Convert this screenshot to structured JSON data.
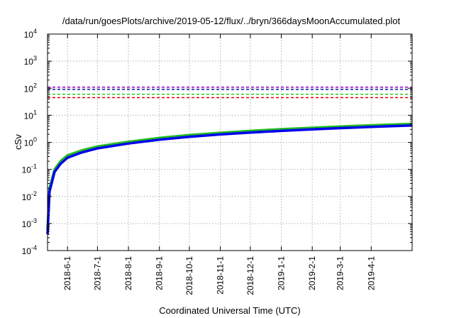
{
  "chart_data": {
    "type": "line",
    "title": "/data/run/goesPlots/archive/2019-05-12/flux/../bryn/366daysMoonAccumulated.plot",
    "xlabel": "Coordinated Universal Time (UTC)",
    "ylabel": "cSv",
    "yscale": "log",
    "ylim": [
      0.0001,
      10000
    ],
    "xlim": [
      "2018-05-12",
      "2019-05-12"
    ],
    "grid": true,
    "y_ticks": [
      {
        "base": "10",
        "exp": "-4",
        "value": 0.0001
      },
      {
        "base": "10",
        "exp": "-3",
        "value": 0.001
      },
      {
        "base": "10",
        "exp": "-2",
        "value": 0.01
      },
      {
        "base": "10",
        "exp": "-1",
        "value": 0.1
      },
      {
        "base": "10",
        "exp": "0",
        "value": 1
      },
      {
        "base": "10",
        "exp": "1",
        "value": 10
      },
      {
        "base": "10",
        "exp": "2",
        "value": 100
      },
      {
        "base": "10",
        "exp": "3",
        "value": 1000
      },
      {
        "base": "10",
        "exp": "4",
        "value": 10000
      }
    ],
    "x_ticks": [
      "2018-6-1",
      "2018-7-1",
      "2018-8-1",
      "2018-9-1",
      "2018-10-1",
      "2018-11-1",
      "2018-12-1",
      "2019-1-1",
      "2019-2-1",
      "2019-3-1",
      "2019-4-1"
    ],
    "series": [
      {
        "color": "#22bb22",
        "style": "solid",
        "x": [
          "2018-05-12",
          "2018-05-14",
          "2018-05-19",
          "2018-05-25",
          "2018-06-01",
          "2018-06-15",
          "2018-07-01",
          "2018-08-01",
          "2018-09-01",
          "2018-10-01",
          "2018-11-01",
          "2018-12-01",
          "2019-01-01",
          "2019-02-01",
          "2019-03-01",
          "2019-04-01",
          "2019-05-12"
        ],
        "values": [
          0.0006,
          0.02,
          0.1,
          0.2,
          0.33,
          0.5,
          0.7,
          1.05,
          1.45,
          1.85,
          2.25,
          2.65,
          3.05,
          3.45,
          3.85,
          4.25,
          4.8
        ]
      },
      {
        "color": "#0000ee",
        "style": "solid",
        "x": [
          "2018-05-12",
          "2018-05-14",
          "2018-05-19",
          "2018-05-25",
          "2018-06-01",
          "2018-06-15",
          "2018-07-01",
          "2018-08-01",
          "2018-09-01",
          "2018-10-01",
          "2018-11-01",
          "2018-12-01",
          "2019-01-01",
          "2019-02-01",
          "2019-03-01",
          "2019-04-01",
          "2019-05-12"
        ],
        "values": [
          0.0004,
          0.015,
          0.08,
          0.16,
          0.27,
          0.42,
          0.6,
          0.9,
          1.25,
          1.6,
          1.95,
          2.3,
          2.65,
          3.0,
          3.35,
          3.7,
          4.2
        ]
      },
      {
        "color": "#9900cc",
        "style": "dashed",
        "x": [
          "2018-05-12",
          "2019-05-12"
        ],
        "values": [
          110,
          110
        ]
      },
      {
        "color": "#1111aa",
        "style": "dashed",
        "x": [
          "2018-05-12",
          "2019-05-12"
        ],
        "values": [
          90,
          90
        ]
      },
      {
        "color": "#22cc22",
        "style": "dashed",
        "x": [
          "2018-05-12",
          "2019-05-12"
        ],
        "values": [
          60,
          60
        ]
      },
      {
        "color": "#dd0000",
        "style": "dashed",
        "x": [
          "2018-05-12",
          "2019-05-12"
        ],
        "values": [
          45,
          45
        ]
      }
    ]
  }
}
